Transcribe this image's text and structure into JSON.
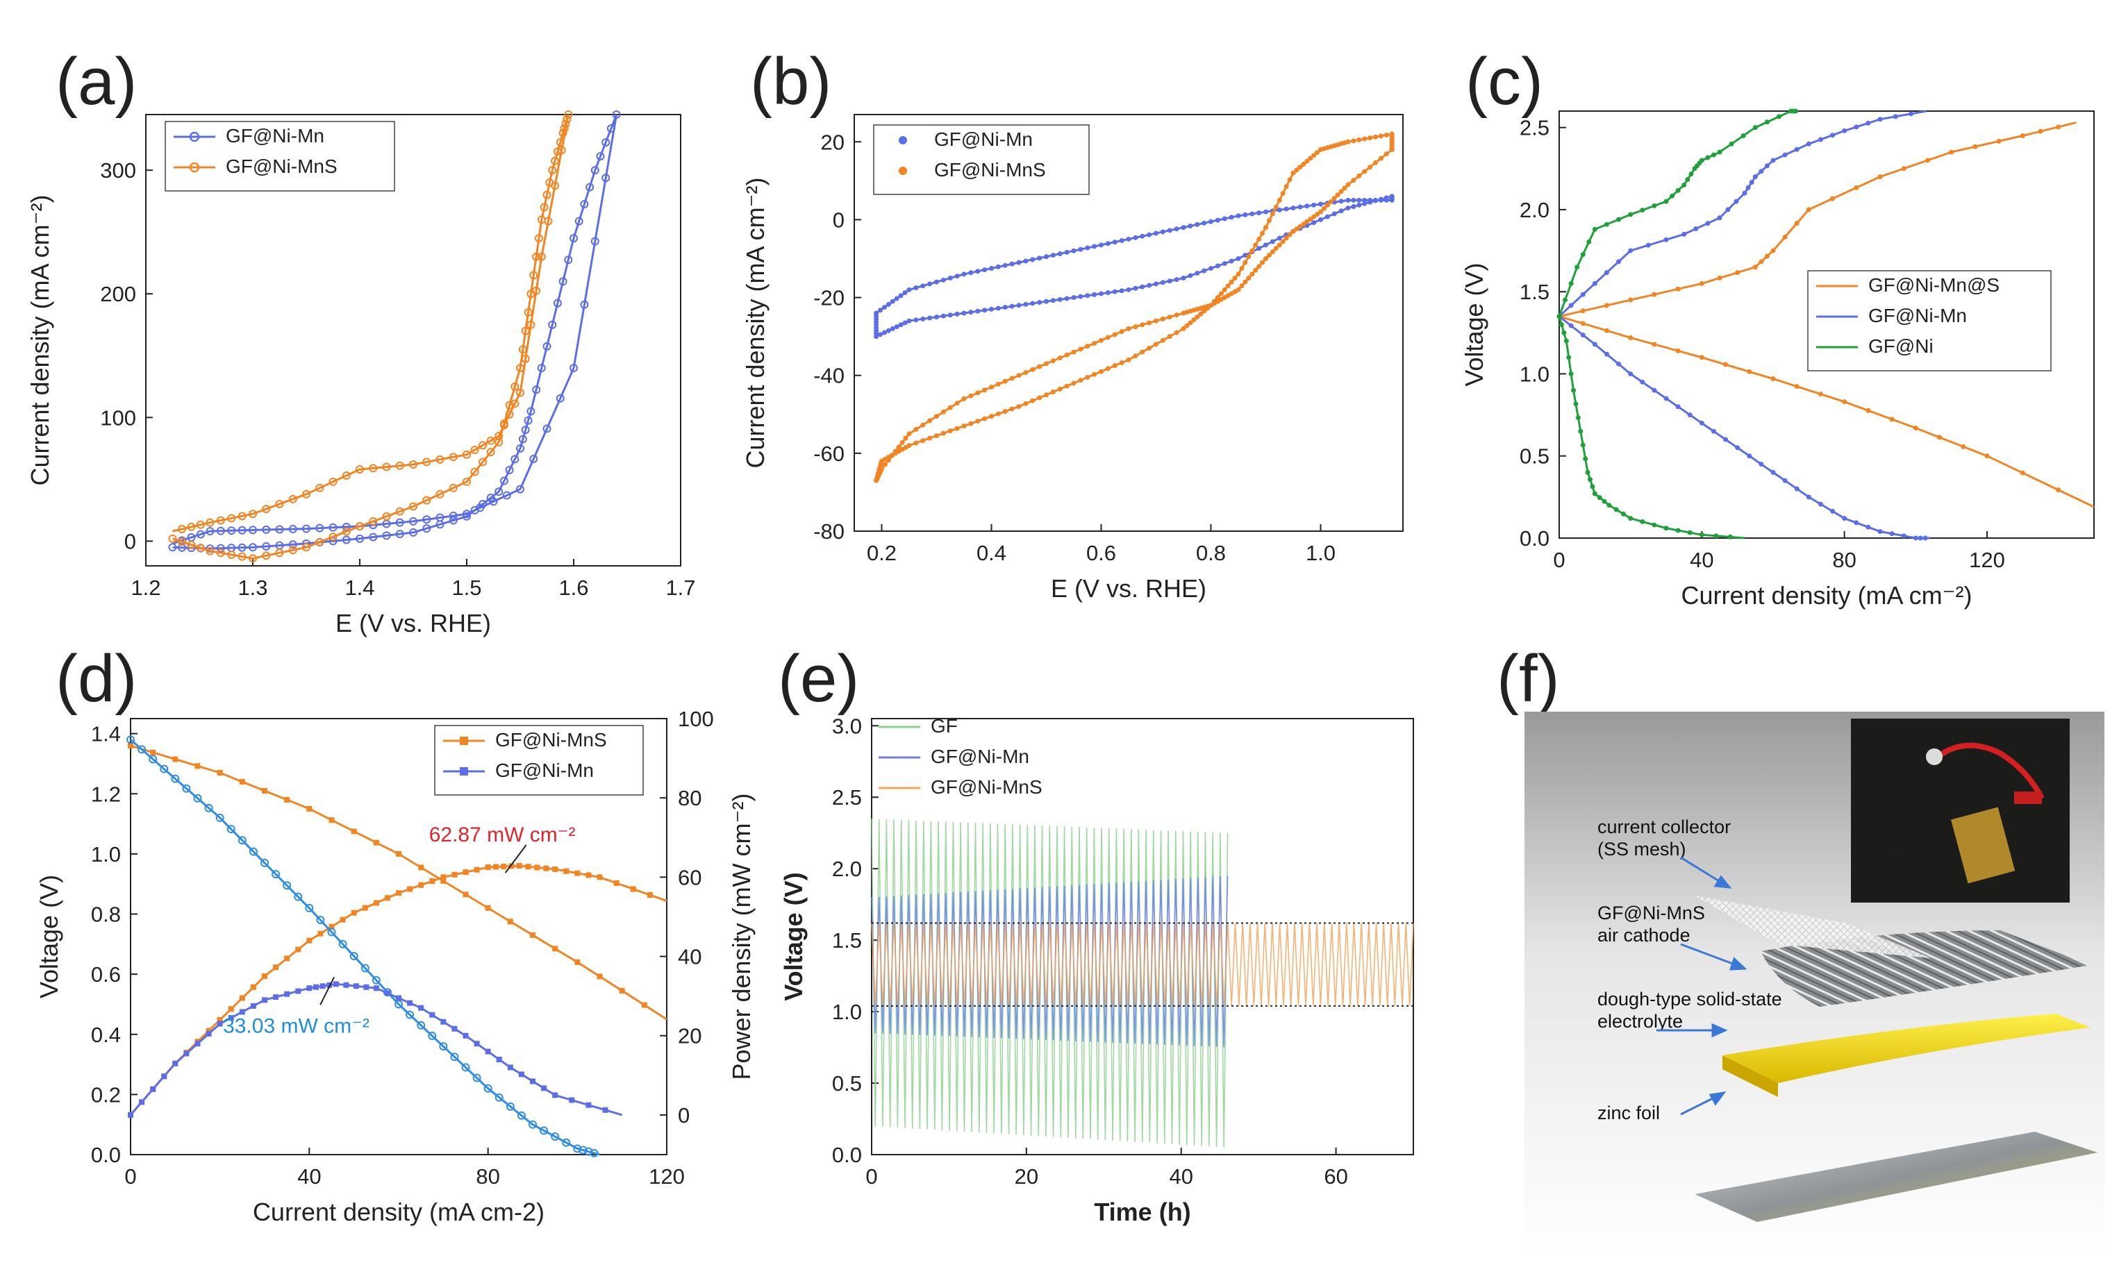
{
  "chart_data": [
    {
      "panel": "(a)",
      "type": "line",
      "xlabel": "E (V vs. RHE)",
      "ylabel": "Current density (mA cm⁻²)",
      "xlim": [
        1.2,
        1.7
      ],
      "ylim": [
        -20,
        345
      ],
      "xticks": [
        "1.2",
        "1.3",
        "1.4",
        "1.5",
        "1.6",
        "1.7"
      ],
      "yticks": [
        "0",
        "100",
        "200",
        "300"
      ],
      "legend": [
        "GF@Ni-Mn",
        "GF@Ni-MnS"
      ],
      "series": [
        {
          "name": "GF@Ni-Mn",
          "color": "#5b6ee8",
          "x": [
            1.225,
            1.26,
            1.3,
            1.35,
            1.4,
            1.45,
            1.5,
            1.53,
            1.55,
            1.56,
            1.58,
            1.6,
            1.62,
            1.64,
            1.6,
            1.55,
            1.5,
            1.45,
            1.4,
            1.35,
            1.3,
            1.26,
            1.225
          ],
          "y": [
            -5,
            -6,
            -5,
            -2,
            2,
            7,
            20,
            40,
            75,
            105,
            175,
            245,
            300,
            345,
            140,
            42,
            22,
            16,
            12,
            10,
            9,
            8,
            -2
          ]
        },
        {
          "name": "GF@Ni-MnS",
          "color": "#f28522",
          "x": [
            1.225,
            1.26,
            1.3,
            1.35,
            1.4,
            1.45,
            1.5,
            1.53,
            1.55,
            1.56,
            1.57,
            1.58,
            1.59,
            1.595,
            1.57,
            1.55,
            1.53,
            1.5,
            1.45,
            1.4,
            1.35,
            1.3,
            1.26,
            1.225
          ],
          "y": [
            2,
            -8,
            -14,
            -5,
            12,
            28,
            48,
            80,
            140,
            200,
            260,
            300,
            330,
            345,
            230,
            120,
            85,
            70,
            62,
            58,
            38,
            22,
            15,
            8
          ]
        }
      ]
    },
    {
      "panel": "(b)",
      "type": "line",
      "xlabel": "E (V vs. RHE)",
      "ylabel": "Current density (mA cm⁻²)",
      "xlim": [
        0.15,
        1.15
      ],
      "ylim": [
        -80,
        27
      ],
      "xticks": [
        "0.2",
        "0.4",
        "0.6",
        "0.8",
        "1.0"
      ],
      "yticks": [
        "-80",
        "-60",
        "-40",
        "-20",
        "0",
        "20"
      ],
      "legend": [
        "GF@Ni-Mn",
        "GF@Ni-MnS"
      ],
      "series": [
        {
          "name": "GF@Ni-Mn",
          "color": "#5b6ee8",
          "x": [
            0.19,
            0.25,
            0.35,
            0.45,
            0.55,
            0.65,
            0.75,
            0.85,
            0.95,
            1.05,
            1.13,
            1.13,
            1.05,
            0.95,
            0.85,
            0.75,
            0.65,
            0.55,
            0.45,
            0.35,
            0.25,
            0.19,
            0.19
          ],
          "y": [
            -30,
            -26,
            -24,
            -22,
            -20,
            -18,
            -15,
            -10,
            -3,
            3,
            6,
            5,
            5,
            3,
            1,
            -2,
            -5,
            -8,
            -11,
            -14,
            -18,
            -24,
            -30
          ]
        },
        {
          "name": "GF@Ni-MnS",
          "color": "#f28522",
          "x": [
            0.19,
            0.2,
            0.25,
            0.35,
            0.45,
            0.55,
            0.65,
            0.75,
            0.8,
            0.85,
            0.9,
            0.95,
            1.0,
            1.05,
            1.13,
            1.13,
            1.05,
            1.0,
            0.95,
            0.9,
            0.85,
            0.8,
            0.75,
            0.65,
            0.55,
            0.45,
            0.35,
            0.25,
            0.2,
            0.19
          ],
          "y": [
            -67,
            -62,
            -58,
            -53,
            -48,
            -42,
            -36,
            -28,
            -22,
            -14,
            -2,
            12,
            18,
            20,
            22,
            18,
            9,
            2,
            -3,
            -10,
            -18,
            -22,
            -24,
            -28,
            -34,
            -40,
            -46,
            -55,
            -64,
            -67
          ]
        }
      ]
    },
    {
      "panel": "(c)",
      "type": "line",
      "xlabel": "Current density (mA cm⁻²)",
      "ylabel": "Voltage (V)",
      "xlim": [
        0,
        150
      ],
      "ylim": [
        0,
        2.6
      ],
      "xticks": [
        "0",
        "40",
        "80",
        "120"
      ],
      "yticks": [
        "0.0",
        "0.5",
        "1.0",
        "1.5",
        "2.0",
        "2.5"
      ],
      "legend": [
        "GF@Ni-Mn@S",
        "GF@Ni-Mn",
        "GF@Ni"
      ],
      "series": [
        {
          "name": "GF@Ni-Mn@S (charge)",
          "color": "#f28522",
          "x": [
            0,
            20,
            40,
            55,
            60,
            70,
            90,
            110,
            130,
            145
          ],
          "y": [
            1.35,
            1.45,
            1.55,
            1.65,
            1.75,
            2.0,
            2.2,
            2.35,
            2.45,
            2.53
          ]
        },
        {
          "name": "GF@Ni-Mn@S (discharge)",
          "color": "#f28522",
          "x": [
            0,
            20,
            40,
            60,
            80,
            100,
            120,
            150
          ],
          "y": [
            1.35,
            1.22,
            1.1,
            0.97,
            0.83,
            0.67,
            0.5,
            0.19
          ]
        },
        {
          "name": "GF@Ni-Mn (charge)",
          "color": "#5b6ee8",
          "x": [
            0,
            10,
            20,
            35,
            45,
            52,
            55,
            60,
            70,
            80,
            90,
            103
          ],
          "y": [
            1.35,
            1.55,
            1.75,
            1.85,
            1.95,
            2.1,
            2.2,
            2.3,
            2.4,
            2.48,
            2.55,
            2.6
          ]
        },
        {
          "name": "GF@Ni-Mn (discharge)",
          "color": "#5b6ee8",
          "x": [
            0,
            10,
            20,
            30,
            40,
            50,
            60,
            70,
            80,
            90,
            100,
            104
          ],
          "y": [
            1.35,
            1.18,
            1.0,
            0.85,
            0.7,
            0.55,
            0.4,
            0.25,
            0.12,
            0.04,
            0.0,
            0.0
          ]
        },
        {
          "name": "GF@Ni (charge)",
          "color": "#1fa03a",
          "x": [
            0,
            5,
            10,
            20,
            30,
            35,
            38,
            40,
            45,
            55,
            65,
            67
          ],
          "y": [
            1.35,
            1.65,
            1.88,
            1.97,
            2.05,
            2.15,
            2.25,
            2.3,
            2.35,
            2.5,
            2.6,
            2.6
          ]
        },
        {
          "name": "GF@Ni (discharge)",
          "color": "#1fa03a",
          "x": [
            0,
            2,
            4,
            6,
            8,
            10,
            14,
            20,
            30,
            40,
            52
          ],
          "y": [
            1.35,
            1.2,
            0.9,
            0.65,
            0.4,
            0.27,
            0.2,
            0.12,
            0.06,
            0.02,
            0.0
          ]
        }
      ]
    },
    {
      "panel": "(d)",
      "type": "line",
      "xlabel": "Current density (mA cm-2)",
      "ylabel": "Voltage (V)",
      "ylabel2": "Power density (mW cm⁻²)",
      "xlim": [
        0,
        120
      ],
      "ylim": [
        0,
        1.45
      ],
      "ylim2": [
        -10,
        100
      ],
      "xticks": [
        "0",
        "40",
        "80",
        "120"
      ],
      "yticks": [
        "0.0",
        "0.2",
        "0.4",
        "0.6",
        "0.8",
        "1.0",
        "1.2",
        "1.4"
      ],
      "yticks2": [
        "0",
        "20",
        "40",
        "60",
        "80",
        "100"
      ],
      "legend": [
        "GF@Ni-MnS",
        "GF@Ni-Mn"
      ],
      "annotations": [
        "62.87 mW cm⁻²",
        "33.03 mW cm⁻²"
      ],
      "series": [
        {
          "name": "GF@Ni-MnS voltage",
          "color": "#f28522",
          "x": [
            0,
            20,
            40,
            60,
            80,
            100,
            120
          ],
          "y": [
            1.36,
            1.27,
            1.15,
            1.0,
            0.82,
            0.64,
            0.45
          ]
        },
        {
          "name": "GF@Ni-MnS power",
          "color": "#f28522",
          "axis": "right",
          "x": [
            0,
            10,
            20,
            30,
            40,
            50,
            60,
            70,
            80,
            87,
            95,
            105,
            120
          ],
          "y": [
            0,
            13,
            24,
            35,
            44,
            51,
            56,
            60,
            62.5,
            62.87,
            62,
            60,
            54
          ]
        },
        {
          "name": "GF@Ni-Mn voltage",
          "color": "#2f8de6",
          "x": [
            0,
            10,
            20,
            30,
            40,
            50,
            60,
            70,
            80,
            90,
            100,
            105
          ],
          "y": [
            1.38,
            1.25,
            1.12,
            0.97,
            0.82,
            0.66,
            0.5,
            0.36,
            0.22,
            0.1,
            0.02,
            0.0
          ]
        },
        {
          "name": "GF@Ni-Mn power",
          "color": "#5b6ee8",
          "axis": "right",
          "x": [
            0,
            10,
            20,
            30,
            40,
            46,
            55,
            65,
            75,
            85,
            95,
            110
          ],
          "y": [
            0,
            13,
            23,
            29,
            32,
            33.03,
            32,
            27,
            20,
            12,
            5,
            0
          ]
        }
      ]
    },
    {
      "panel": "(e)",
      "type": "line",
      "xlabel": "Time (h)",
      "ylabel": "Voltage (V)",
      "xlim": [
        0,
        70
      ],
      "ylim": [
        0,
        3.05
      ],
      "xticks": [
        "0",
        "20",
        "40",
        "60"
      ],
      "yticks": [
        "0.0",
        "0.5",
        "1.0",
        "1.5",
        "2.0",
        "2.5",
        "3.0"
      ],
      "legend": [
        "GF",
        "GF@Ni-Mn",
        "GF@Ni-MnS"
      ],
      "series": [
        {
          "name": "GF",
          "color": "#8fd18f",
          "x": [
            0,
            46
          ],
          "charge": [
            2.35,
            2.25
          ],
          "discharge": [
            0.2,
            0.05
          ],
          "cycles": 96
        },
        {
          "name": "GF@Ni-Mn",
          "color": "#6a7cf0",
          "x": [
            0,
            46
          ],
          "charge": [
            1.8,
            1.95
          ],
          "discharge": [
            0.85,
            0.75
          ],
          "cycles": 96
        },
        {
          "name": "GF@Ni-MnS",
          "color": "#f5a55a",
          "x": [
            0,
            70
          ],
          "charge": [
            1.62,
            1.62
          ],
          "discharge": [
            1.04,
            1.04
          ],
          "cycles": 146
        }
      ],
      "reference_lines": [
        1.62,
        1.04
      ]
    }
  ],
  "panel_labels": [
    "(a)",
    "(b)",
    "(c)",
    "(d)",
    "(e)",
    "(f)"
  ],
  "diagram_f": {
    "labels": [
      "current collector",
      "(SS mesh)",
      "GF@Ni-MnS",
      "air cathode",
      "dough-type solid-state",
      "electrolyte",
      "zinc foil"
    ]
  }
}
